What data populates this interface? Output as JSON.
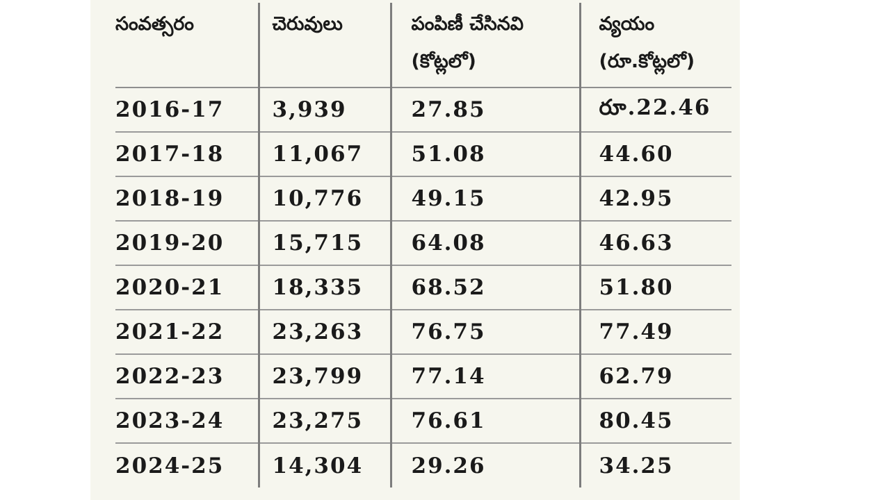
{
  "table": {
    "headers": [
      {
        "line1": "సంవత్సరం",
        "line2": ""
      },
      {
        "line1": "చెరువులు",
        "line2": ""
      },
      {
        "line1": "పంపిణీ చేసినవి",
        "line2": "(కోట్లలో)"
      },
      {
        "line1": "వ్యయం",
        "line2": "(రూ.కోట్లలో)"
      }
    ],
    "rows": [
      [
        "2016-17",
        "3,939",
        "27.85",
        "రూ.22.46"
      ],
      [
        "2017-18",
        "11,067",
        "51.08",
        "44.60"
      ],
      [
        "2018-19",
        "10,776",
        "49.15",
        "42.95"
      ],
      [
        "2019-20",
        "15,715",
        "64.08",
        "46.63"
      ],
      [
        "2020-21",
        "18,335",
        "68.52",
        "51.80"
      ],
      [
        "2021-22",
        "23,263",
        "76.75",
        "77.49"
      ],
      [
        "2022-23",
        "23,799",
        "77.14",
        "62.79"
      ],
      [
        "2023-24",
        "23,275",
        "76.61",
        "80.45"
      ],
      [
        "2024-25",
        "14,304",
        "29.26",
        "34.25"
      ]
    ]
  }
}
